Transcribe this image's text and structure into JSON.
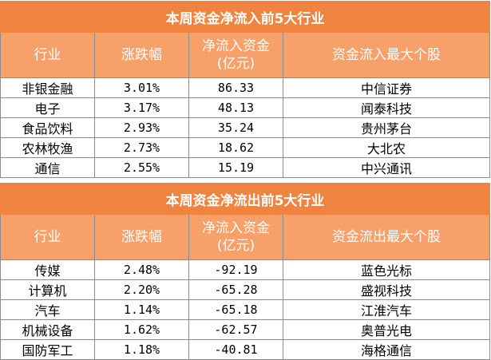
{
  "inflow": {
    "title": "本周资金净流入前5大行业",
    "headers": [
      "行业",
      "涨跌幅",
      "净流入资金\n(亿元)",
      "资金流入最大个股"
    ],
    "rows": [
      [
        "非银金融",
        "3.01%",
        "86.33",
        "中信证券"
      ],
      [
        "电子",
        "3.17%",
        "48.13",
        "闻泰科技"
      ],
      [
        "食品饮料",
        "2.93%",
        "35.24",
        "贵州茅台"
      ],
      [
        "农林牧渔",
        "2.73%",
        "18.62",
        "大北农"
      ],
      [
        "通信",
        "2.55%",
        "15.19",
        "中兴通讯"
      ]
    ]
  },
  "outflow": {
    "title": "本周资金净流出前5大行业",
    "headers": [
      "行业",
      "涨跌幅",
      "净流入资金\n(亿元)",
      "资金流出最大个股"
    ],
    "rows": [
      [
        "传媒",
        "2.48%",
        "-92.19",
        "蓝色光标"
      ],
      [
        "计算机",
        "2.20%",
        "-65.28",
        "盛视科技"
      ],
      [
        "汽车",
        "1.14%",
        "-65.18",
        "江淮汽车"
      ],
      [
        "机械设备",
        "1.62%",
        "-62.57",
        "奥普光电"
      ],
      [
        "国防军工",
        "1.18%",
        "-40.81",
        "海格通信"
      ]
    ]
  }
}
